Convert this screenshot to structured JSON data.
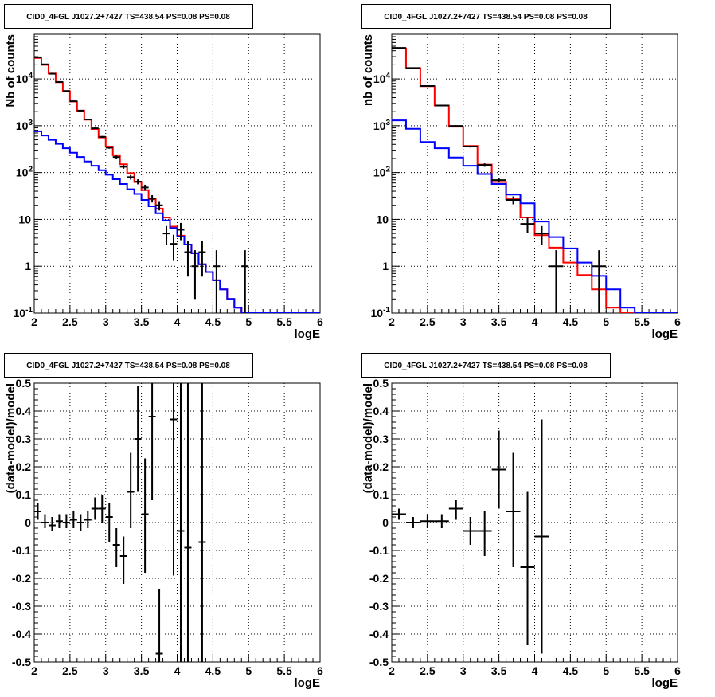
{
  "chart_data": [
    {
      "type": "line",
      "title": "CID0_4FGL J1027.2+7427 TS=438.54 PS=0.08 PS=0.08",
      "xlabel": "logE",
      "ylabel": "Nb of counts",
      "xlim": [
        2,
        6
      ],
      "ylim": [
        0.1,
        90000
      ],
      "yscale": "log",
      "grid": true,
      "x_ticks": [
        "2",
        "2.5",
        "3",
        "3.5",
        "4",
        "4.5",
        "5",
        "5.5",
        "6"
      ],
      "y_ticks": [
        {
          "value": 0.1,
          "label": "10",
          "exp": "-1"
        },
        {
          "value": 1,
          "label": "1",
          "exp": ""
        },
        {
          "value": 10,
          "label": "10",
          "exp": ""
        },
        {
          "value": 100,
          "label": "10",
          "exp": "2"
        },
        {
          "value": 1000,
          "label": "10",
          "exp": "3"
        },
        {
          "value": 10000,
          "label": "10",
          "exp": "4"
        }
      ],
      "bin_edges": [
        2,
        2.1,
        2.2,
        2.3,
        2.4,
        2.5,
        2.6,
        2.7,
        2.8,
        2.9,
        3,
        3.1,
        3.2,
        3.3,
        3.4,
        3.5,
        3.6,
        3.7,
        3.8,
        3.9,
        4,
        4.1,
        4.2,
        4.3,
        4.4,
        4.5,
        4.6,
        4.7,
        4.8,
        4.9,
        5,
        5.1,
        5.2,
        5.3,
        5.4,
        5.5,
        5.6,
        5.7,
        5.8,
        5.9,
        6
      ],
      "series": [
        {
          "kind": "hist",
          "color": "#ff0000",
          "values": [
            28000,
            20000,
            13000,
            8500,
            5500,
            3300,
            2100,
            1350,
            850,
            560,
            360,
            235,
            150,
            97,
            63,
            42,
            27,
            17,
            11,
            7,
            4.5,
            2.9,
            1.9,
            1.1,
            0.75,
            0.5,
            0.32,
            0.2,
            0.13,
            0.085,
            0.09,
            0.09,
            0.09,
            0.09,
            0.09,
            0.09,
            0.09,
            0.09,
            0.09,
            0.09
          ]
        },
        {
          "kind": "hist",
          "color": "#0000ff",
          "values": [
            760,
            620,
            500,
            410,
            330,
            265,
            215,
            172,
            140,
            112,
            90,
            72,
            57,
            44,
            35,
            26,
            19,
            13.5,
            9.5,
            6.5,
            4.3,
            2.9,
            1.9,
            1.1,
            0.75,
            0.5,
            0.32,
            0.2,
            0.13,
            0.085,
            0.09,
            0.09,
            0.09,
            0.09,
            0.09,
            0.09,
            0.09,
            0.09,
            0.09,
            0.09
          ]
        },
        {
          "kind": "points",
          "color": "#000000",
          "points": [
            {
              "x": 2.05,
              "y": 29000,
              "lo": 28700,
              "hi": 29300
            },
            {
              "x": 2.15,
              "y": 20500,
              "lo": 20300,
              "hi": 20700
            },
            {
              "x": 2.25,
              "y": 12900,
              "lo": 12700,
              "hi": 13100
            },
            {
              "x": 2.35,
              "y": 8600,
              "lo": 8500,
              "hi": 8700
            },
            {
              "x": 2.45,
              "y": 5520,
              "lo": 5450,
              "hi": 5590
            },
            {
              "x": 2.55,
              "y": 3330,
              "lo": 3270,
              "hi": 3390
            },
            {
              "x": 2.65,
              "y": 2100,
              "lo": 2050,
              "hi": 2150
            },
            {
              "x": 2.75,
              "y": 1360,
              "lo": 1320,
              "hi": 1400
            },
            {
              "x": 2.85,
              "y": 880,
              "lo": 850,
              "hi": 910
            },
            {
              "x": 2.95,
              "y": 580,
              "lo": 556,
              "hi": 604
            },
            {
              "x": 3.05,
              "y": 340,
              "lo": 322,
              "hi": 358
            },
            {
              "x": 3.15,
              "y": 215,
              "lo": 200,
              "hi": 230
            },
            {
              "x": 3.25,
              "y": 133,
              "lo": 121,
              "hi": 145
            },
            {
              "x": 3.35,
              "y": 80,
              "lo": 71,
              "hi": 89
            },
            {
              "x": 3.45,
              "y": 64,
              "lo": 56,
              "hi": 72
            },
            {
              "x": 3.55,
              "y": 48,
              "lo": 41,
              "hi": 55
            },
            {
              "x": 3.65,
              "y": 28,
              "lo": 23,
              "hi": 33
            },
            {
              "x": 3.75,
              "y": 20,
              "lo": 15.5,
              "hi": 24.5
            },
            {
              "x": 3.85,
              "y": 5,
              "lo": 2.8,
              "hi": 7.2
            },
            {
              "x": 3.95,
              "y": 3,
              "lo": 1.3,
              "hi": 4.7
            },
            {
              "x": 4.05,
              "y": 6,
              "lo": 3.6,
              "hi": 8.4
            },
            {
              "x": 4.15,
              "y": 2,
              "lo": 0.6,
              "hi": 3.4
            },
            {
              "x": 4.25,
              "y": 1,
              "lo": 0.2,
              "hi": 2.2
            },
            {
              "x": 4.35,
              "y": 2,
              "lo": 0.6,
              "hi": 3.4
            },
            {
              "x": 4.55,
              "y": 1,
              "lo": 0.1,
              "hi": 2.2
            },
            {
              "x": 4.95,
              "y": 1,
              "lo": 0.1,
              "hi": 2.2
            }
          ]
        }
      ]
    },
    {
      "type": "line",
      "title": "CID0_4FGL J1027.2+7427 TS=438.54 PS=0.08 PS=0.08",
      "xlabel": "logE",
      "ylabel": "nb of counts",
      "xlim": [
        2,
        6
      ],
      "ylim": [
        0.1,
        90000
      ],
      "yscale": "log",
      "grid": true,
      "x_ticks": [
        "2",
        "2.5",
        "3",
        "3.5",
        "4",
        "4.5",
        "5",
        "5.5",
        "6"
      ],
      "y_ticks": [
        {
          "value": 0.1,
          "label": "10",
          "exp": "-1"
        },
        {
          "value": 1,
          "label": "1",
          "exp": ""
        },
        {
          "value": 10,
          "label": "10",
          "exp": ""
        },
        {
          "value": 100,
          "label": "10",
          "exp": "2"
        },
        {
          "value": 1000,
          "label": "10",
          "exp": "3"
        },
        {
          "value": 10000,
          "label": "10",
          "exp": "4"
        }
      ],
      "bin_edges": [
        2,
        2.2,
        2.4,
        2.6,
        2.8,
        3,
        3.2,
        3.4,
        3.6,
        3.8,
        4,
        4.2,
        4.4,
        4.6,
        4.8,
        5,
        5.2,
        5.4,
        5.6,
        5.8,
        6
      ],
      "series": [
        {
          "kind": "hist",
          "color": "#ff0000",
          "values": [
            45000,
            17000,
            7000,
            2700,
            950,
            370,
            148,
            63,
            27,
            11,
            4.6,
            2.5,
            1.2,
            0.65,
            0.32,
            0.13,
            0.09,
            0.09,
            0.09,
            0.09
          ]
        },
        {
          "kind": "hist",
          "color": "#0000ff",
          "values": [
            1300,
            860,
            450,
            330,
            210,
            140,
            93,
            57,
            34,
            22,
            9,
            4.2,
            2.4,
            1.2,
            0.62,
            0.32,
            0.13,
            0.09,
            0.09,
            0.09
          ]
        },
        {
          "kind": "points",
          "color": "#000000",
          "points": [
            {
              "x": 2.1,
              "y": 46000,
              "lo": 45700,
              "hi": 46300
            },
            {
              "x": 2.3,
              "y": 17100,
              "lo": 16950,
              "hi": 17250
            },
            {
              "x": 2.5,
              "y": 7050,
              "lo": 6950,
              "hi": 7150
            },
            {
              "x": 2.7,
              "y": 2700,
              "lo": 2650,
              "hi": 2750
            },
            {
              "x": 2.9,
              "y": 990,
              "lo": 960,
              "hi": 1020
            },
            {
              "x": 3.1,
              "y": 360,
              "lo": 342,
              "hi": 378
            },
            {
              "x": 3.3,
              "y": 145,
              "lo": 133,
              "hi": 157
            },
            {
              "x": 3.5,
              "y": 69,
              "lo": 61,
              "hi": 77
            },
            {
              "x": 3.7,
              "y": 26,
              "lo": 21,
              "hi": 31
            },
            {
              "x": 3.9,
              "y": 8,
              "lo": 5.2,
              "hi": 10.8
            },
            {
              "x": 4.1,
              "y": 5,
              "lo": 2.8,
              "hi": 7.2
            },
            {
              "x": 4.3,
              "y": 1,
              "lo": 0.1,
              "hi": 2.2
            },
            {
              "x": 4.9,
              "y": 1,
              "lo": 0.1,
              "hi": 2.2
            }
          ]
        }
      ]
    },
    {
      "type": "scatter",
      "title": "CID0_4FGL J1027.2+7427 TS=438.54 PS=0.08 PS=0.08",
      "xlabel": "logE",
      "ylabel": "(data-model)/model",
      "xlim": [
        2,
        6
      ],
      "ylim": [
        -0.5,
        0.5
      ],
      "grid": true,
      "x_ticks": [
        "2",
        "2.5",
        "3",
        "3.5",
        "4",
        "4.5",
        "5",
        "5.5",
        "6"
      ],
      "y_ticks": [
        "-0.5",
        "-0.4",
        "-0.3",
        "-0.2",
        "-0.1",
        "0",
        "0.1",
        "0.2",
        "0.3",
        "0.4",
        "0.5"
      ],
      "x_halfwidth": 0.05,
      "points": [
        {
          "x": 2.05,
          "y": 0.04,
          "lo": 0.01,
          "hi": 0.07
        },
        {
          "x": 2.15,
          "y": 0.0,
          "lo": -0.02,
          "hi": 0.03
        },
        {
          "x": 2.25,
          "y": -0.01,
          "lo": -0.03,
          "hi": 0.02
        },
        {
          "x": 2.35,
          "y": 0.005,
          "lo": -0.02,
          "hi": 0.03
        },
        {
          "x": 2.45,
          "y": 0.0,
          "lo": -0.02,
          "hi": 0.03
        },
        {
          "x": 2.55,
          "y": 0.01,
          "lo": -0.02,
          "hi": 0.04
        },
        {
          "x": 2.65,
          "y": 0.0,
          "lo": -0.03,
          "hi": 0.03
        },
        {
          "x": 2.75,
          "y": 0.01,
          "lo": -0.02,
          "hi": 0.04
        },
        {
          "x": 2.85,
          "y": 0.05,
          "lo": 0.01,
          "hi": 0.09
        },
        {
          "x": 2.95,
          "y": 0.05,
          "lo": 0.0,
          "hi": 0.1
        },
        {
          "x": 3.05,
          "y": 0.02,
          "lo": -0.07,
          "hi": 0.07
        },
        {
          "x": 3.15,
          "y": -0.08,
          "lo": -0.16,
          "hi": -0.02
        },
        {
          "x": 3.25,
          "y": -0.12,
          "lo": -0.22,
          "hi": -0.05
        },
        {
          "x": 3.35,
          "y": 0.11,
          "lo": -0.02,
          "hi": 0.25
        },
        {
          "x": 3.45,
          "y": 0.3,
          "lo": 0.11,
          "hi": 0.49
        },
        {
          "x": 3.55,
          "y": 0.03,
          "lo": -0.18,
          "hi": 0.23
        },
        {
          "x": 3.65,
          "y": 0.38,
          "lo": 0.08,
          "hi": 0.7
        },
        {
          "x": 3.75,
          "y": -0.47,
          "lo": -0.7,
          "hi": -0.24
        },
        {
          "x": 3.95,
          "y": 0.37,
          "lo": -0.19,
          "hi": 0.9
        },
        {
          "x": 4.05,
          "y": -0.03,
          "lo": -0.6,
          "hi": 0.6
        },
        {
          "x": 4.15,
          "y": -0.09,
          "lo": -0.6,
          "hi": 0.6
        },
        {
          "x": 4.35,
          "y": -0.07,
          "lo": -0.6,
          "hi": 0.6
        }
      ]
    },
    {
      "type": "scatter",
      "title": "CID0_4FGL J1027.2+7427 TS=438.54 PS=0.08 PS=0.08",
      "xlabel": "logE",
      "ylabel": "(data-model)/model",
      "xlim": [
        2,
        6
      ],
      "ylim": [
        -0.5,
        0.5
      ],
      "grid": true,
      "x_ticks": [
        "2",
        "2.5",
        "3",
        "3.5",
        "4",
        "4.5",
        "5",
        "5.5",
        "6"
      ],
      "y_ticks": [
        "-0.5",
        "-0.4",
        "-0.3",
        "-0.2",
        "-0.1",
        "0",
        "0.1",
        "0.2",
        "0.3",
        "0.4",
        "0.5"
      ],
      "x_halfwidth": 0.1,
      "points": [
        {
          "x": 2.1,
          "y": 0.03,
          "lo": 0.01,
          "hi": 0.05
        },
        {
          "x": 2.3,
          "y": 0.0,
          "lo": -0.02,
          "hi": 0.02
        },
        {
          "x": 2.5,
          "y": 0.005,
          "lo": -0.02,
          "hi": 0.03
        },
        {
          "x": 2.7,
          "y": 0.005,
          "lo": -0.02,
          "hi": 0.03
        },
        {
          "x": 2.9,
          "y": 0.05,
          "lo": 0.01,
          "hi": 0.08
        },
        {
          "x": 3.1,
          "y": -0.03,
          "lo": -0.08,
          "hi": 0.02
        },
        {
          "x": 3.3,
          "y": -0.03,
          "lo": -0.12,
          "hi": 0.04
        },
        {
          "x": 3.5,
          "y": 0.19,
          "lo": 0.05,
          "hi": 0.33
        },
        {
          "x": 3.7,
          "y": 0.04,
          "lo": -0.16,
          "hi": 0.25
        },
        {
          "x": 3.9,
          "y": -0.16,
          "lo": -0.44,
          "hi": 0.11
        },
        {
          "x": 4.1,
          "y": -0.05,
          "lo": -0.47,
          "hi": 0.37
        }
      ]
    }
  ]
}
